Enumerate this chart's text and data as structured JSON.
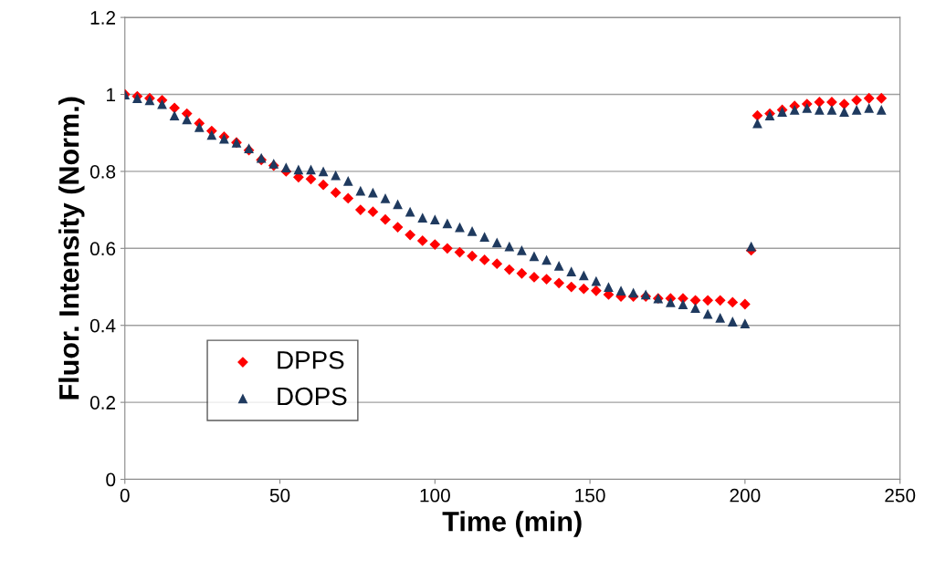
{
  "chart_data": {
    "type": "scatter",
    "xlabel": "Time (min)",
    "ylabel": "Fluor. Intensity (Norm.)",
    "x": [
      0,
      4,
      8,
      12,
      16,
      20,
      24,
      28,
      32,
      36,
      40,
      44,
      48,
      52,
      56,
      60,
      64,
      68,
      72,
      76,
      80,
      84,
      88,
      92,
      96,
      100,
      104,
      108,
      112,
      116,
      120,
      124,
      128,
      132,
      136,
      140,
      144,
      148,
      152,
      156,
      160,
      164,
      168,
      172,
      176,
      180,
      184,
      188,
      192,
      196,
      200,
      202,
      204,
      208,
      212,
      216,
      220,
      224,
      228,
      232,
      236,
      240,
      244
    ],
    "series": [
      {
        "name": "DPPS",
        "color": "#ff0000",
        "marker": "diamond",
        "values": [
          1.0,
          0.995,
          0.99,
          0.985,
          0.965,
          0.95,
          0.925,
          0.905,
          0.89,
          0.875,
          0.855,
          0.83,
          0.815,
          0.8,
          0.785,
          0.78,
          0.765,
          0.745,
          0.73,
          0.7,
          0.695,
          0.675,
          0.655,
          0.635,
          0.62,
          0.61,
          0.6,
          0.59,
          0.58,
          0.57,
          0.56,
          0.545,
          0.535,
          0.525,
          0.52,
          0.51,
          0.5,
          0.495,
          0.49,
          0.48,
          0.475,
          0.475,
          0.475,
          0.47,
          0.47,
          0.47,
          0.465,
          0.465,
          0.465,
          0.46,
          0.455,
          0.595,
          0.945,
          0.95,
          0.96,
          0.97,
          0.975,
          0.98,
          0.98,
          0.975,
          0.985,
          0.99,
          0.99
        ]
      },
      {
        "name": "DOPS",
        "color": "#1f3a5f",
        "marker": "triangle",
        "values": [
          1.0,
          0.99,
          0.985,
          0.975,
          0.945,
          0.935,
          0.915,
          0.895,
          0.885,
          0.875,
          0.86,
          0.835,
          0.82,
          0.81,
          0.805,
          0.805,
          0.8,
          0.79,
          0.775,
          0.75,
          0.745,
          0.73,
          0.715,
          0.695,
          0.68,
          0.675,
          0.665,
          0.655,
          0.645,
          0.63,
          0.615,
          0.605,
          0.595,
          0.58,
          0.57,
          0.555,
          0.54,
          0.53,
          0.515,
          0.5,
          0.49,
          0.485,
          0.48,
          0.47,
          0.46,
          0.455,
          0.445,
          0.43,
          0.42,
          0.41,
          0.405,
          0.605,
          0.925,
          0.945,
          0.955,
          0.96,
          0.965,
          0.96,
          0.96,
          0.955,
          0.96,
          0.965,
          0.96
        ]
      }
    ],
    "xlim": [
      0,
      250
    ],
    "xticks": [
      0,
      50,
      100,
      150,
      200,
      250
    ],
    "ylim": [
      0,
      1.2
    ],
    "yticks": [
      0,
      0.2,
      0.4,
      0.6,
      0.8,
      1,
      1.2
    ],
    "grid": "y",
    "legend": "bottom left"
  }
}
